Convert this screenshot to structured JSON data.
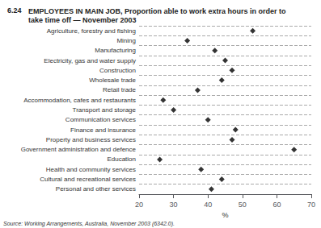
{
  "chart_data": {
    "type": "scatter",
    "orientation": "horizontal",
    "title": "6.24",
    "subtitle": "EMPLOYEES IN MAIN JOB, Proportion able to work extra hours in order to\ntake time off — November 2003",
    "annotations": [
      "Source: Working Arrangements, Australia, November 2003 (6342.0)."
    ],
    "categories": [
      "Agriculture, forestry and fishing",
      "Mining",
      "Manufacturing",
      "Electricity, gas and water supply",
      "Construction",
      "Wholesale trade",
      "Retail trade",
      "Accommodation, cafes and restaurants",
      "Transport and storage",
      "Communication services",
      "Finance and insurance",
      "Property and business services",
      "Government administration and defence",
      "Education",
      "Health and community services",
      "Cultural and recreational services",
      "Personal and other services"
    ],
    "values": [
      53,
      34,
      42,
      45,
      47,
      44,
      37,
      27,
      30,
      40,
      48,
      47,
      65,
      26,
      38,
      44,
      41
    ],
    "xlabel": "%",
    "xlim": [
      20,
      70
    ],
    "xticks": [
      20,
      30,
      40,
      50,
      60,
      70
    ],
    "color": "black",
    "marker": "diamond",
    "grid": true
  }
}
